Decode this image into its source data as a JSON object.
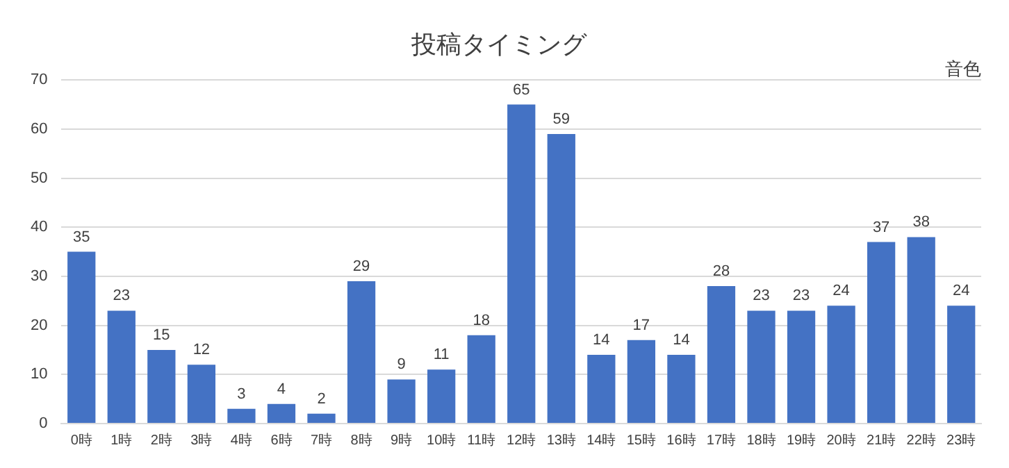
{
  "chart_data": {
    "type": "bar",
    "title": "投稿タイミング",
    "annotations": [
      "音色"
    ],
    "categories": [
      "0時",
      "1時",
      "2時",
      "3時",
      "4時",
      "6時",
      "7時",
      "8時",
      "9時",
      "10時",
      "11時",
      "12時",
      "13時",
      "14時",
      "15時",
      "16時",
      "17時",
      "18時",
      "19時",
      "20時",
      "21時",
      "22時",
      "23時"
    ],
    "values": [
      35,
      23,
      15,
      12,
      3,
      4,
      2,
      29,
      9,
      11,
      18,
      65,
      59,
      14,
      17,
      14,
      28,
      23,
      23,
      24,
      37,
      38,
      24
    ],
    "color": "#4472c4",
    "ylim": [
      0,
      70
    ],
    "yticks": [
      0,
      10,
      20,
      30,
      40,
      50,
      60,
      70
    ],
    "grid": "y",
    "data_labels": true,
    "legend": false
  }
}
